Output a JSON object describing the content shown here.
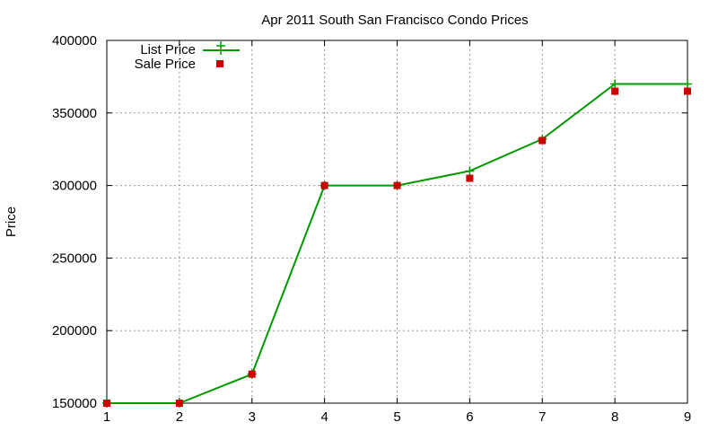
{
  "chart_data": {
    "type": "line",
    "title": "Apr 2011 South San Francisco Condo Prices",
    "xlabel": "",
    "ylabel": "Price",
    "x": [
      1,
      2,
      3,
      4,
      5,
      6,
      7,
      8,
      9
    ],
    "xlim": [
      1,
      9
    ],
    "ylim": [
      150000,
      400000
    ],
    "xticks": [
      "1",
      "2",
      "3",
      "4",
      "5",
      "6",
      "7",
      "8",
      "9"
    ],
    "yticks": [
      "150000",
      "200000",
      "250000",
      "300000",
      "350000",
      "400000"
    ],
    "ytick_values": [
      150000,
      200000,
      250000,
      300000,
      350000,
      400000
    ],
    "grid": true,
    "legend_position": "top-left",
    "series": [
      {
        "name": "List Price",
        "style": "line+plus",
        "color": "#009900",
        "values": [
          150000,
          150000,
          170000,
          300000,
          300000,
          310000,
          332000,
          370000,
          370000
        ]
      },
      {
        "name": "Sale Price",
        "style": "square",
        "color": "#cc0000",
        "values": [
          150000,
          150000,
          170000,
          300000,
          300000,
          305000,
          331000,
          365000,
          365000
        ]
      }
    ]
  }
}
